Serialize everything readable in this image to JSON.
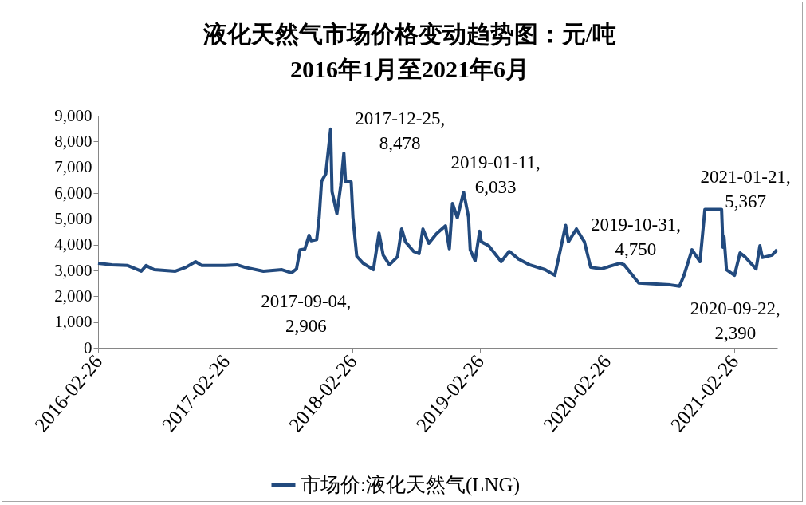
{
  "chart_data": {
    "type": "line",
    "title": "液化天然气市场价格变动趋势图：元/吨",
    "subtitle": "2016年1月至2021年6月",
    "xlim": [
      "2016-02-26",
      "2021-06-30"
    ],
    "xticks": [
      "2016-02-26",
      "2017-02-26",
      "2018-02-26",
      "2019-02-26",
      "2020-02-26",
      "2021-02-26"
    ],
    "ylim": [
      0,
      9000
    ],
    "yticks": [
      0,
      {
        "value": 1000,
        "label": "1,000"
      },
      {
        "value": 2000,
        "label": "2,000"
      },
      {
        "value": 3000,
        "label": "3,000"
      },
      {
        "value": 4000,
        "label": "4,000"
      },
      {
        "value": 5000,
        "label": "5,000"
      },
      {
        "value": 6000,
        "label": "6,000"
      },
      {
        "value": 7000,
        "label": "7,000"
      },
      {
        "value": 8000,
        "label": "8,000"
      },
      {
        "value": 9000,
        "label": "9,000"
      }
    ],
    "grid": false,
    "legend": "bottom",
    "marker": "none",
    "line_style": "solid",
    "x": [
      "2016-02-26",
      "2016-04-05",
      "2016-05-21",
      "2016-06-29",
      "2016-07-13",
      "2016-08-05",
      "2016-10-05",
      "2016-11-04",
      "2016-12-02",
      "2016-12-20",
      "2017-02-26",
      "2017-03-31",
      "2017-04-23",
      "2017-06-15",
      "2017-08-07",
      "2017-09-04",
      "2017-09-18",
      "2017-09-28",
      "2017-10-12",
      "2017-10-24",
      "2017-10-30",
      "2017-11-15",
      "2017-11-22",
      "2017-11-29",
      "2017-12-11",
      "2017-12-25",
      "2017-12-29",
      "2018-01-12",
      "2018-01-23",
      "2018-02-01",
      "2018-02-06",
      "2018-02-22",
      "2018-02-27",
      "2018-03-10",
      "2018-03-28",
      "2018-04-27",
      "2018-05-13",
      "2018-05-25",
      "2018-06-12",
      "2018-07-05",
      "2018-07-17",
      "2018-07-28",
      "2018-08-20",
      "2018-09-05",
      "2018-09-16",
      "2018-10-03",
      "2018-10-25",
      "2018-11-20",
      "2018-12-01",
      "2018-12-10",
      "2018-12-24",
      "2019-01-11",
      "2019-01-25",
      "2019-01-30",
      "2019-02-13",
      "2019-02-26",
      "2019-03-03",
      "2019-03-24",
      "2019-04-29",
      "2019-05-22",
      "2019-06-19",
      "2019-07-19",
      "2019-09-02",
      "2019-09-30",
      "2019-10-16",
      "2019-10-31",
      "2019-11-08",
      "2019-12-01",
      "2019-12-24",
      "2020-01-11",
      "2020-02-10",
      "2020-04-05",
      "2020-04-16",
      "2020-05-28",
      "2020-08-27",
      "2020-09-22",
      "2020-10-05",
      "2020-10-28",
      "2020-11-20",
      "2020-12-04",
      "2021-01-21",
      "2021-01-25",
      "2021-01-28",
      "2021-02-04",
      "2021-02-27",
      "2021-03-15",
      "2021-03-29",
      "2021-04-30",
      "2021-05-11",
      "2021-05-18",
      "2021-06-15",
      "2021-06-29"
    ],
    "series": [
      {
        "name": "市场价:液化天然气(LNG)",
        "color": "#224a7e",
        "values": [
          3280,
          3220,
          3190,
          2970,
          3190,
          3030,
          2970,
          3120,
          3340,
          3190,
          3190,
          3220,
          3120,
          2970,
          3030,
          2906,
          3060,
          3800,
          3830,
          4360,
          4150,
          4200,
          5040,
          6460,
          6740,
          8478,
          6060,
          5200,
          6280,
          7550,
          6430,
          6430,
          5070,
          3550,
          3280,
          3030,
          4450,
          3590,
          3220,
          3530,
          4610,
          4110,
          3740,
          3650,
          4610,
          4050,
          4420,
          4730,
          3840,
          5600,
          5040,
          6033,
          5070,
          3800,
          3370,
          4520,
          4110,
          3960,
          3340,
          3740,
          3430,
          3220,
          3030,
          2810,
          3800,
          4750,
          4110,
          4610,
          4110,
          3120,
          3060,
          3280,
          3220,
          2510,
          2440,
          2390,
          2810,
          3800,
          3340,
          5367,
          5367,
          3900,
          4300,
          3030,
          2810,
          3680,
          3530,
          3060,
          3960,
          3500,
          3590,
          3800
        ]
      }
    ],
    "annotations": [
      {
        "text": "2017-09-04,\n2,906",
        "x": "2017-09-04",
        "y": 2906
      },
      {
        "text": "2017-12-25,\n8,478",
        "x": "2017-12-25",
        "y": 8478
      },
      {
        "text": "2019-01-11,\n6,033",
        "x": "2019-01-11",
        "y": 6033
      },
      {
        "text": "2019-10-31,\n4,750",
        "x": "2019-10-31",
        "y": 4750
      },
      {
        "text": "2021-01-21,\n5,367",
        "x": "2021-01-21",
        "y": 5367
      },
      {
        "text": "2020-09-22,\n2,390",
        "x": "2020-09-22",
        "y": 2390
      }
    ]
  }
}
